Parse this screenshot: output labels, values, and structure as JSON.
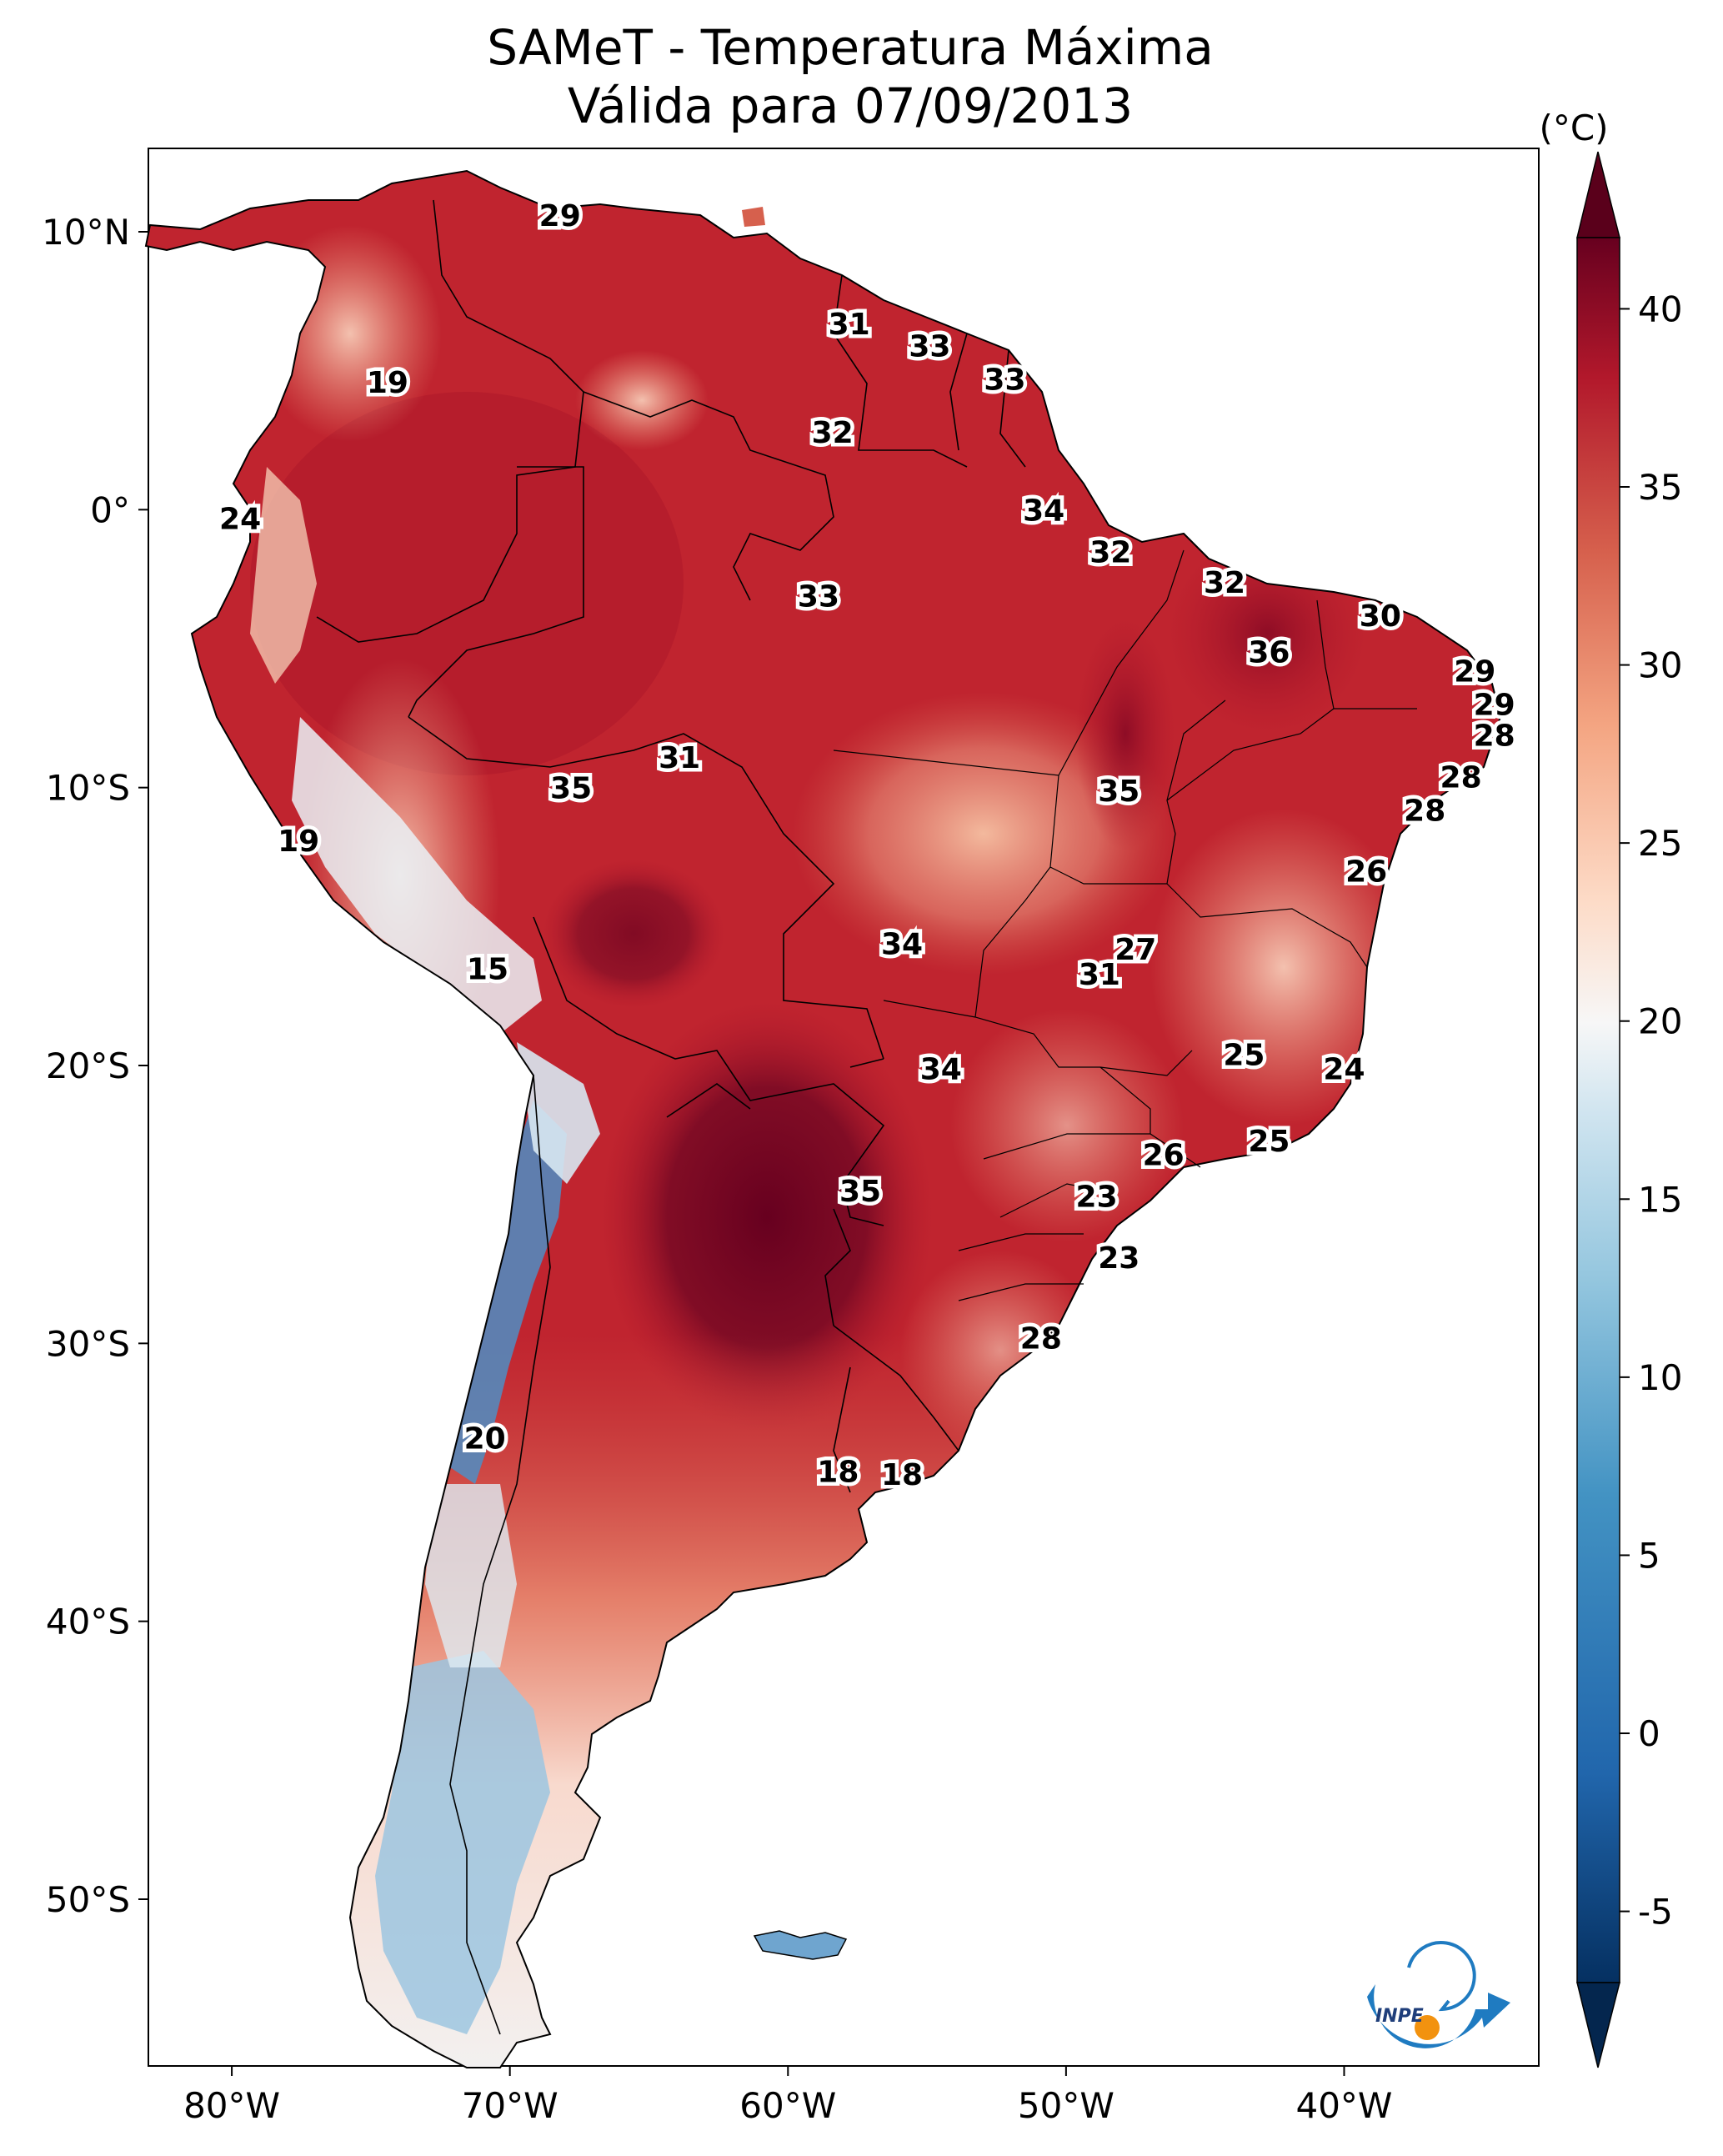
{
  "title": {
    "line1": "SAMeT - Temperatura Máxima",
    "line2": "Válida para 07/09/2013"
  },
  "map": {
    "lon_ticks": [
      "80°W",
      "70°W",
      "60°W",
      "50°W",
      "40°W"
    ],
    "lat_ticks": [
      "10°N",
      "0°",
      "10°S",
      "20°S",
      "30°S",
      "40°S",
      "50°S"
    ],
    "lon_values": [
      -80,
      -70,
      -60,
      -50,
      -40
    ],
    "lat_values": [
      10,
      0,
      -10,
      -20,
      -30,
      -40,
      -50
    ],
    "extent": {
      "lon_min": -83,
      "lon_max": -33,
      "lat_min": -56,
      "lat_max": 13
    }
  },
  "colorbar": {
    "unit": "(°C)",
    "ticks": [
      "40",
      "35",
      "30",
      "25",
      "20",
      "15",
      "10",
      "5",
      "0",
      "-5"
    ],
    "tick_values": [
      40,
      35,
      30,
      25,
      20,
      15,
      10,
      5,
      0,
      -5
    ],
    "range": [
      -7,
      42
    ],
    "colormap": "RdBu_r",
    "extend": "both"
  },
  "temperature_labels": [
    {
      "value": "29",
      "lon": -68.2,
      "lat": 10.6
    },
    {
      "value": "19",
      "lon": -74.4,
      "lat": 4.6
    },
    {
      "value": "31",
      "lon": -57.8,
      "lat": 6.7
    },
    {
      "value": "33",
      "lon": -54.9,
      "lat": 5.9
    },
    {
      "value": "33",
      "lon": -52.2,
      "lat": 4.7
    },
    {
      "value": "32",
      "lon": -58.4,
      "lat": 2.8
    },
    {
      "value": "24",
      "lon": -79.7,
      "lat": -0.3
    },
    {
      "value": "34",
      "lon": -50.8,
      "lat": 0.0
    },
    {
      "value": "32",
      "lon": -48.4,
      "lat": -1.5
    },
    {
      "value": "33",
      "lon": -58.9,
      "lat": -3.1
    },
    {
      "value": "32",
      "lon": -44.3,
      "lat": -2.6
    },
    {
      "value": "30",
      "lon": -38.7,
      "lat": -3.8
    },
    {
      "value": "36",
      "lon": -42.7,
      "lat": -5.1
    },
    {
      "value": "29",
      "lon": -35.3,
      "lat": -5.8
    },
    {
      "value": "29",
      "lon": -34.6,
      "lat": -7.0
    },
    {
      "value": "28",
      "lon": -34.6,
      "lat": -8.1
    },
    {
      "value": "31",
      "lon": -63.9,
      "lat": -8.9
    },
    {
      "value": "35",
      "lon": -67.8,
      "lat": -10.0
    },
    {
      "value": "35",
      "lon": -48.1,
      "lat": -10.1
    },
    {
      "value": "28",
      "lon": -35.8,
      "lat": -9.6
    },
    {
      "value": "28",
      "lon": -37.1,
      "lat": -10.8
    },
    {
      "value": "19",
      "lon": -77.6,
      "lat": -11.9
    },
    {
      "value": "26",
      "lon": -39.2,
      "lat": -13.0
    },
    {
      "value": "34",
      "lon": -55.9,
      "lat": -15.6
    },
    {
      "value": "27",
      "lon": -47.5,
      "lat": -15.8
    },
    {
      "value": "31",
      "lon": -48.8,
      "lat": -16.7
    },
    {
      "value": "15",
      "lon": -70.8,
      "lat": -16.5
    },
    {
      "value": "34",
      "lon": -54.5,
      "lat": -20.1
    },
    {
      "value": "25",
      "lon": -43.6,
      "lat": -19.6
    },
    {
      "value": "24",
      "lon": -40.0,
      "lat": -20.1
    },
    {
      "value": "25",
      "lon": -42.7,
      "lat": -22.7
    },
    {
      "value": "26",
      "lon": -46.5,
      "lat": -23.2
    },
    {
      "value": "35",
      "lon": -57.4,
      "lat": -24.5
    },
    {
      "value": "23",
      "lon": -48.9,
      "lat": -24.7
    },
    {
      "value": "23",
      "lon": -48.1,
      "lat": -26.9
    },
    {
      "value": "28",
      "lon": -50.9,
      "lat": -29.8
    },
    {
      "value": "20",
      "lon": -70.9,
      "lat": -33.4
    },
    {
      "value": "18",
      "lon": -58.2,
      "lat": -34.6
    },
    {
      "value": "18",
      "lon": -55.9,
      "lat": -34.7
    }
  ],
  "logo": {
    "text": "INPE"
  }
}
